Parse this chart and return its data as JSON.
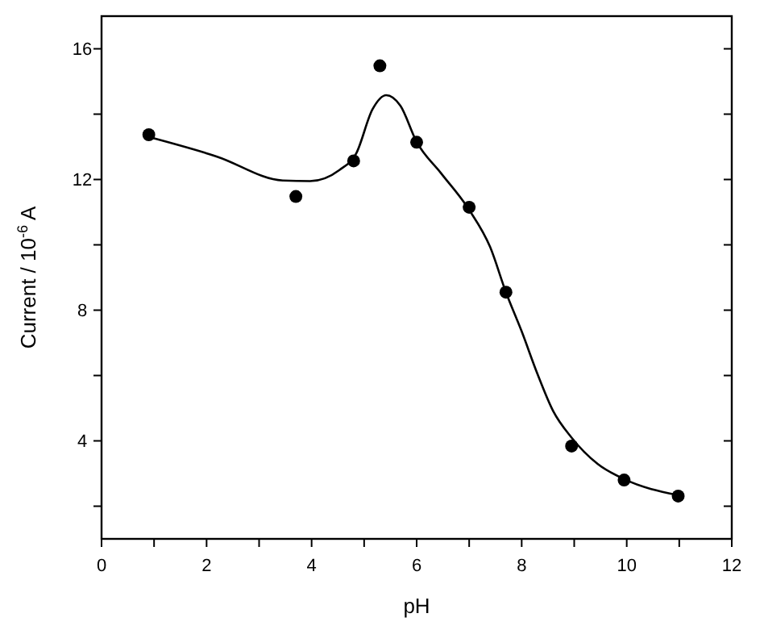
{
  "chart_data": {
    "type": "scatter",
    "xlabel": "pH",
    "ylabel": "Current / 10$^{-6}$ A",
    "xlim": [
      0,
      12
    ],
    "ylim": [
      1,
      17
    ],
    "xticks": [
      0,
      {
        "value": 1,
        "label": null
      },
      2,
      {
        "value": 3,
        "label": null
      },
      4,
      {
        "value": 5,
        "label": null
      },
      6,
      {
        "value": 7,
        "label": null
      },
      8,
      {
        "value": 9,
        "label": null
      },
      10,
      {
        "value": 11,
        "label": null
      },
      12
    ],
    "yticks": [
      {
        "value": 2,
        "label": null
      },
      4,
      {
        "value": 6,
        "label": null
      },
      8,
      {
        "value": 10,
        "label": null
      },
      12,
      {
        "value": 14,
        "label": null
      },
      16
    ],
    "grid": false,
    "series": [
      {
        "color": "#000000",
        "marker": "circle",
        "x": [
          0.9,
          3.7,
          4.8,
          5.3,
          6.0,
          7.0,
          7.7,
          8.95,
          9.95,
          10.98
        ],
        "values": [
          13.37,
          11.48,
          12.57,
          15.48,
          13.14,
          11.15,
          8.55,
          3.84,
          2.8,
          2.31
        ]
      },
      {
        "type": "line",
        "color": "#000000",
        "line_style": "solid",
        "x": [
          0.9,
          2.2,
          3.45,
          3.97,
          4.53,
          4.85,
          5.16,
          5.42,
          5.69,
          6.0,
          6.46,
          7.0,
          7.4,
          7.7,
          8.0,
          8.3,
          8.6,
          8.95,
          9.45,
          9.95,
          10.98
        ],
        "values": [
          13.3,
          12.7,
          11.97,
          11.95,
          12.29,
          12.8,
          14.15,
          14.58,
          14.26,
          13.15,
          12.2,
          11.07,
          9.93,
          8.55,
          7.35,
          6.05,
          4.91,
          4.1,
          3.29,
          2.83,
          2.34
        ]
      }
    ]
  }
}
